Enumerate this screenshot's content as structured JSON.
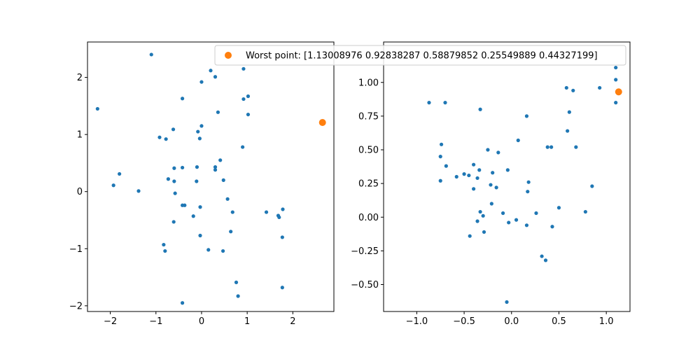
{
  "colors": {
    "primary": "#1f77b4",
    "worst": "#ff7f0e",
    "axis": "#000000",
    "legend_border": "#cccccc"
  },
  "chart_data": [
    {
      "type": "scatter",
      "xlim": [
        -2.5,
        2.9
      ],
      "ylim": [
        -2.1,
        2.62
      ],
      "xticks": [
        -2,
        -1,
        0,
        1,
        2
      ],
      "yticks": [
        -2,
        -1,
        0,
        1,
        2
      ],
      "grid": false,
      "series": [
        {
          "color": "#1f77b4",
          "points": [
            [
              -1.1,
              2.4
            ],
            [
              0.2,
              2.12
            ],
            [
              0.92,
              2.15
            ],
            [
              0.3,
              2.01
            ],
            [
              0.0,
              1.92
            ],
            [
              1.02,
              1.67
            ],
            [
              0.92,
              1.62
            ],
            [
              -0.42,
              1.63
            ],
            [
              -2.28,
              1.45
            ],
            [
              0.36,
              1.39
            ],
            [
              1.02,
              1.35
            ],
            [
              0.0,
              1.15
            ],
            [
              -0.62,
              1.09
            ],
            [
              -0.08,
              1.05
            ],
            [
              -0.92,
              0.95
            ],
            [
              -0.78,
              0.92
            ],
            [
              -0.04,
              0.93
            ],
            [
              0.9,
              0.78
            ],
            [
              0.41,
              0.55
            ],
            [
              -0.6,
              0.41
            ],
            [
              -0.42,
              0.42
            ],
            [
              -0.1,
              0.43
            ],
            [
              0.3,
              0.43
            ],
            [
              0.3,
              0.38
            ],
            [
              -1.8,
              0.31
            ],
            [
              -0.73,
              0.22
            ],
            [
              -0.6,
              0.18
            ],
            [
              -0.11,
              0.18
            ],
            [
              0.48,
              0.2
            ],
            [
              -1.93,
              0.11
            ],
            [
              -1.38,
              0.01
            ],
            [
              -0.58,
              -0.03
            ],
            [
              0.57,
              -0.13
            ],
            [
              -0.42,
              -0.24
            ],
            [
              -0.37,
              -0.24
            ],
            [
              -0.03,
              -0.27
            ],
            [
              0.68,
              -0.36
            ],
            [
              1.42,
              -0.36
            ],
            [
              1.78,
              -0.31
            ],
            [
              -0.18,
              -0.43
            ],
            [
              1.68,
              -0.42
            ],
            [
              1.7,
              -0.45
            ],
            [
              -0.61,
              -0.53
            ],
            [
              0.64,
              -0.7
            ],
            [
              -0.03,
              -0.77
            ],
            [
              1.77,
              -0.8
            ],
            [
              -0.83,
              -0.93
            ],
            [
              -0.8,
              -1.04
            ],
            [
              0.15,
              -1.02
            ],
            [
              0.47,
              -1.04
            ],
            [
              0.76,
              -1.59
            ],
            [
              0.8,
              -1.83
            ],
            [
              1.77,
              -1.68
            ],
            [
              -0.42,
              -1.95
            ]
          ]
        },
        {
          "color": "#ff7f0e",
          "points": [
            [
              2.65,
              1.21
            ]
          ]
        }
      ]
    },
    {
      "type": "scatter",
      "xlim": [
        -1.35,
        1.25
      ],
      "ylim": [
        -0.7,
        1.3
      ],
      "xticks": [
        -1.0,
        -0.5,
        0.0,
        0.5,
        1.0
      ],
      "xtick_labels": [
        "−1.0",
        "−0.5",
        "0.0",
        "0.5",
        "1.0"
      ],
      "yticks": [
        -0.5,
        -0.25,
        0.0,
        0.25,
        0.5,
        0.75,
        1.0
      ],
      "ytick_labels": [
        "−0.50",
        "−0.25",
        "0.00",
        "0.25",
        "0.50",
        "0.75",
        "1.00"
      ],
      "grid": false,
      "legend": {
        "placement": "top-right",
        "label": "Worst point: [1.13008976 0.92838287 0.58879852 0.25549889 0.44327199]"
      },
      "series": [
        {
          "color": "#1f77b4",
          "points": [
            [
              1.1,
              1.11
            ],
            [
              1.1,
              1.02
            ],
            [
              0.58,
              0.96
            ],
            [
              0.65,
              0.94
            ],
            [
              0.93,
              0.96
            ],
            [
              -0.87,
              0.85
            ],
            [
              -0.7,
              0.85
            ],
            [
              1.1,
              0.85
            ],
            [
              -0.33,
              0.8
            ],
            [
              0.61,
              0.78
            ],
            [
              0.16,
              0.75
            ],
            [
              0.59,
              0.64
            ],
            [
              0.07,
              0.57
            ],
            [
              -0.74,
              0.54
            ],
            [
              -0.75,
              0.45
            ],
            [
              -0.25,
              0.5
            ],
            [
              -0.14,
              0.48
            ],
            [
              0.38,
              0.52
            ],
            [
              0.42,
              0.52
            ],
            [
              0.68,
              0.52
            ],
            [
              -0.69,
              0.38
            ],
            [
              -0.4,
              0.39
            ],
            [
              -0.34,
              0.35
            ],
            [
              -0.04,
              0.35
            ],
            [
              -0.2,
              0.33
            ],
            [
              -0.5,
              0.32
            ],
            [
              -0.45,
              0.31
            ],
            [
              -0.58,
              0.3
            ],
            [
              -0.36,
              0.29
            ],
            [
              -0.75,
              0.27
            ],
            [
              0.18,
              0.26
            ],
            [
              -0.22,
              0.24
            ],
            [
              -0.16,
              0.22
            ],
            [
              -0.4,
              0.21
            ],
            [
              0.85,
              0.23
            ],
            [
              0.17,
              0.19
            ],
            [
              -0.21,
              0.1
            ],
            [
              0.5,
              0.07
            ],
            [
              -0.33,
              0.04
            ],
            [
              -0.09,
              0.03
            ],
            [
              0.26,
              0.03
            ],
            [
              0.78,
              0.04
            ],
            [
              -0.3,
              0.01
            ],
            [
              -0.36,
              -0.03
            ],
            [
              0.05,
              -0.02
            ],
            [
              -0.03,
              -0.04
            ],
            [
              0.16,
              -0.06
            ],
            [
              0.43,
              -0.07
            ],
            [
              -0.29,
              -0.11
            ],
            [
              -0.44,
              -0.14
            ],
            [
              0.32,
              -0.29
            ],
            [
              0.36,
              -0.32
            ],
            [
              -0.05,
              -0.63
            ]
          ]
        },
        {
          "color": "#ff7f0e",
          "points": [
            [
              1.13,
              0.93
            ]
          ]
        }
      ]
    }
  ]
}
